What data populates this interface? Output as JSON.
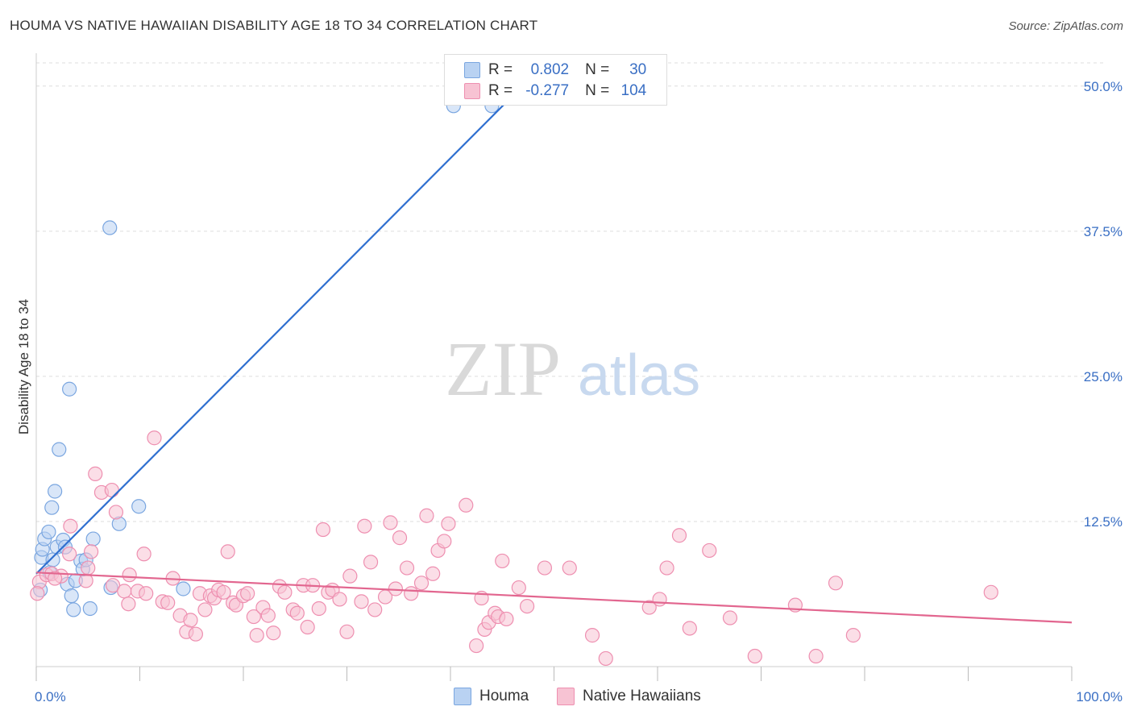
{
  "title": "HOUMA VS NATIVE HAWAIIAN DISABILITY AGE 18 TO 34 CORRELATION CHART",
  "source": "Source: ZipAtlas.com",
  "watermark": {
    "zip": "ZIP",
    "atlas": "atlas"
  },
  "legend": {
    "r_label": "R =",
    "n_label": "N =",
    "houma": {
      "r": "0.802",
      "n": "30"
    },
    "hawaiian": {
      "r": "-0.277",
      "n": "104"
    }
  },
  "bottom_legend": {
    "houma": "Houma",
    "hawaiian": "Native Hawaiians"
  },
  "colors": {
    "houma_fill": "#b9d2f2",
    "houma_stroke": "#7aa6e0",
    "houma_line": "#2f6fd0",
    "hawaiian_fill": "#f7c3d3",
    "hawaiian_stroke": "#ee8fb0",
    "hawaiian_line": "#e2668f",
    "tick_text": "#3a6fc4",
    "grid": "#dddddd"
  },
  "chart_data": {
    "type": "scatter",
    "title": "HOUMA VS NATIVE HAWAIIAN DISABILITY AGE 18 TO 34 CORRELATION CHART",
    "xlabel": "",
    "ylabel": "Disability Age 18 to 34",
    "xlim": [
      0,
      100
    ],
    "ylim": [
      0,
      52
    ],
    "x_ticks": [
      {
        "value": 0,
        "label": "0.0%"
      },
      {
        "value": 100,
        "label": "100.0%"
      }
    ],
    "x_minor_ticks": [
      10,
      20,
      30,
      40,
      50,
      60,
      70,
      80,
      90
    ],
    "y_ticks": [
      {
        "value": 12.5,
        "label": "12.5%"
      },
      {
        "value": 25,
        "label": "25.0%"
      },
      {
        "value": 37.5,
        "label": "37.5%"
      },
      {
        "value": 50,
        "label": "50.0%"
      }
    ],
    "grid": true,
    "series": [
      {
        "name": "Houma",
        "r": 0.802,
        "n": 30,
        "trend": {
          "x0": 0,
          "y0": 8.0,
          "x1": 47.5,
          "y1": 50.5
        },
        "points": [
          [
            0.4,
            6.6
          ],
          [
            0.5,
            9.4
          ],
          [
            0.6,
            10.1
          ],
          [
            0.8,
            11.0
          ],
          [
            1.2,
            11.6
          ],
          [
            1.3,
            8.1
          ],
          [
            1.5,
            13.7
          ],
          [
            1.6,
            9.2
          ],
          [
            1.8,
            15.1
          ],
          [
            2.0,
            10.3
          ],
          [
            2.2,
            18.7
          ],
          [
            2.6,
            10.9
          ],
          [
            2.8,
            10.3
          ],
          [
            3.0,
            7.1
          ],
          [
            3.2,
            23.9
          ],
          [
            3.4,
            6.1
          ],
          [
            3.6,
            4.9
          ],
          [
            3.8,
            7.4
          ],
          [
            4.3,
            9.1
          ],
          [
            4.5,
            8.4
          ],
          [
            4.8,
            9.2
          ],
          [
            5.2,
            5.0
          ],
          [
            5.5,
            11.0
          ],
          [
            7.1,
            37.8
          ],
          [
            7.2,
            6.8
          ],
          [
            8.0,
            12.3
          ],
          [
            9.9,
            13.8
          ],
          [
            14.2,
            6.7
          ],
          [
            40.3,
            48.3
          ],
          [
            44.0,
            48.3
          ]
        ]
      },
      {
        "name": "Native Hawaiians",
        "r": -0.277,
        "n": 104,
        "trend": {
          "x0": 0,
          "y0": 8.1,
          "x1": 100,
          "y1": 3.8
        },
        "points": [
          [
            0.3,
            7.3
          ],
          [
            1.0,
            7.9
          ],
          [
            1.5,
            8.0
          ],
          [
            2.4,
            7.8
          ],
          [
            3.2,
            9.7
          ],
          [
            3.3,
            12.1
          ],
          [
            4.8,
            7.4
          ],
          [
            5.0,
            8.5
          ],
          [
            5.3,
            9.9
          ],
          [
            5.7,
            16.6
          ],
          [
            6.3,
            15.0
          ],
          [
            7.3,
            15.2
          ],
          [
            7.4,
            7.0
          ],
          [
            7.7,
            13.3
          ],
          [
            8.5,
            6.5
          ],
          [
            8.9,
            5.4
          ],
          [
            9.0,
            7.9
          ],
          [
            9.8,
            6.5
          ],
          [
            10.4,
            9.7
          ],
          [
            10.6,
            6.3
          ],
          [
            11.4,
            19.7
          ],
          [
            12.2,
            5.6
          ],
          [
            12.7,
            5.5
          ],
          [
            13.2,
            7.6
          ],
          [
            13.9,
            4.4
          ],
          [
            14.5,
            3.0
          ],
          [
            14.9,
            4.0
          ],
          [
            15.4,
            2.8
          ],
          [
            15.8,
            6.3
          ],
          [
            16.3,
            4.9
          ],
          [
            16.8,
            6.1
          ],
          [
            17.2,
            5.9
          ],
          [
            17.6,
            6.6
          ],
          [
            18.1,
            6.4
          ],
          [
            18.5,
            9.9
          ],
          [
            19.0,
            5.5
          ],
          [
            19.3,
            5.3
          ],
          [
            20.0,
            6.1
          ],
          [
            20.4,
            6.3
          ],
          [
            21.0,
            4.3
          ],
          [
            21.3,
            2.7
          ],
          [
            21.9,
            5.1
          ],
          [
            22.4,
            4.4
          ],
          [
            22.9,
            2.9
          ],
          [
            23.5,
            6.9
          ],
          [
            24.0,
            6.4
          ],
          [
            24.8,
            4.9
          ],
          [
            25.2,
            4.6
          ],
          [
            25.8,
            7.0
          ],
          [
            26.2,
            3.4
          ],
          [
            26.7,
            7.0
          ],
          [
            27.3,
            5.0
          ],
          [
            27.7,
            11.8
          ],
          [
            28.2,
            6.4
          ],
          [
            28.6,
            6.6
          ],
          [
            29.3,
            5.8
          ],
          [
            30.0,
            3.0
          ],
          [
            30.3,
            7.8
          ],
          [
            31.4,
            5.6
          ],
          [
            31.7,
            12.1
          ],
          [
            32.3,
            9.0
          ],
          [
            32.7,
            4.9
          ],
          [
            33.7,
            6.0
          ],
          [
            34.2,
            12.4
          ],
          [
            34.7,
            6.7
          ],
          [
            35.1,
            11.1
          ],
          [
            35.8,
            8.5
          ],
          [
            36.2,
            6.3
          ],
          [
            37.2,
            7.2
          ],
          [
            37.7,
            13.0
          ],
          [
            38.3,
            8.0
          ],
          [
            38.8,
            10.0
          ],
          [
            39.4,
            10.8
          ],
          [
            39.8,
            12.3
          ],
          [
            41.5,
            13.9
          ],
          [
            42.5,
            1.8
          ],
          [
            43.0,
            5.9
          ],
          [
            43.3,
            3.2
          ],
          [
            43.7,
            3.8
          ],
          [
            44.3,
            4.6
          ],
          [
            44.6,
            4.3
          ],
          [
            45.0,
            9.1
          ],
          [
            45.4,
            4.1
          ],
          [
            46.6,
            6.8
          ],
          [
            47.4,
            5.2
          ],
          [
            49.1,
            8.5
          ],
          [
            51.5,
            8.5
          ],
          [
            53.7,
            2.7
          ],
          [
            55.0,
            0.7
          ],
          [
            59.2,
            5.1
          ],
          [
            60.2,
            5.8
          ],
          [
            60.9,
            8.5
          ],
          [
            62.1,
            11.3
          ],
          [
            63.1,
            3.3
          ],
          [
            65.0,
            10.0
          ],
          [
            67.0,
            4.2
          ],
          [
            69.4,
            0.9
          ],
          [
            73.3,
            5.3
          ],
          [
            75.3,
            0.9
          ],
          [
            77.2,
            7.2
          ],
          [
            78.9,
            2.7
          ],
          [
            92.2,
            6.4
          ],
          [
            0.1,
            6.3
          ],
          [
            1.8,
            7.6
          ]
        ]
      }
    ]
  }
}
